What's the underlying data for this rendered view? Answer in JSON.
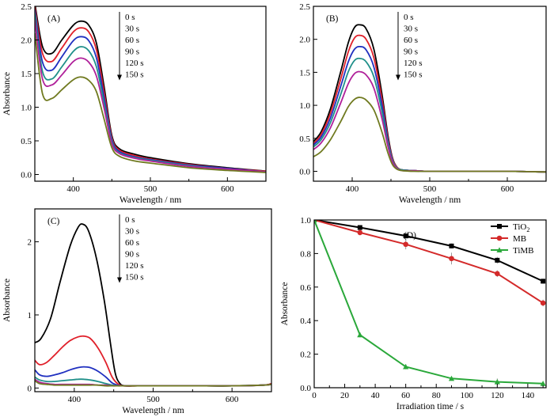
{
  "chart_data": [
    {
      "type": "line",
      "panel_label": "(A)",
      "xlabel": "Wavelength / nm",
      "ylabel": "Absorbance",
      "xlim": [
        350,
        650
      ],
      "ylim": [
        -0.1,
        2.5
      ],
      "xticks": [
        400,
        500,
        600
      ],
      "yticks": [
        0.0,
        0.5,
        1.0,
        1.5,
        2.0,
        2.5
      ],
      "ytick_labels": [
        "0.0",
        "0.5",
        "1.0",
        "1.5",
        "2.0",
        "2.5"
      ],
      "legend": [
        "0 s",
        "30 s",
        "60 s",
        "90 s",
        "120 s",
        "150 s"
      ],
      "legend_arrow": true,
      "colors": [
        "#000000",
        "#e0202a",
        "#2030c0",
        "#20908a",
        "#b0209a",
        "#707a20"
      ],
      "series": [
        {
          "name": "0 s",
          "x": [
            350,
            360,
            372,
            385,
            400,
            410,
            420,
            430,
            440,
            450,
            460,
            480,
            500,
            550,
            600,
            650
          ],
          "y": [
            2.55,
            1.9,
            1.8,
            2.0,
            2.22,
            2.28,
            2.22,
            1.95,
            1.3,
            0.58,
            0.38,
            0.3,
            0.25,
            0.16,
            0.1,
            0.05
          ]
        },
        {
          "name": "30 s",
          "x": [
            350,
            360,
            372,
            385,
            400,
            410,
            420,
            430,
            440,
            450,
            460,
            480,
            500,
            550,
            600,
            650
          ],
          "y": [
            2.5,
            1.8,
            1.68,
            1.88,
            2.12,
            2.18,
            2.12,
            1.85,
            1.22,
            0.55,
            0.36,
            0.28,
            0.23,
            0.15,
            0.09,
            0.05
          ]
        },
        {
          "name": "60 s",
          "x": [
            350,
            360,
            372,
            385,
            400,
            410,
            420,
            430,
            440,
            450,
            460,
            480,
            500,
            550,
            600,
            650
          ],
          "y": [
            2.45,
            1.67,
            1.55,
            1.75,
            1.99,
            2.05,
            1.99,
            1.73,
            1.14,
            0.52,
            0.34,
            0.26,
            0.22,
            0.14,
            0.09,
            0.04
          ]
        },
        {
          "name": "90 s",
          "x": [
            350,
            360,
            372,
            385,
            400,
            410,
            420,
            430,
            440,
            450,
            460,
            480,
            500,
            550,
            600,
            650
          ],
          "y": [
            2.4,
            1.53,
            1.42,
            1.6,
            1.83,
            1.9,
            1.84,
            1.6,
            1.06,
            0.49,
            0.32,
            0.25,
            0.21,
            0.13,
            0.08,
            0.04
          ]
        },
        {
          "name": "120 s",
          "x": [
            350,
            360,
            372,
            385,
            400,
            410,
            420,
            430,
            440,
            450,
            460,
            480,
            500,
            550,
            600,
            650
          ],
          "y": [
            2.3,
            1.42,
            1.33,
            1.48,
            1.68,
            1.73,
            1.67,
            1.46,
            0.98,
            0.46,
            0.31,
            0.24,
            0.2,
            0.12,
            0.08,
            0.04
          ]
        },
        {
          "name": "150 s",
          "x": [
            350,
            360,
            372,
            385,
            400,
            410,
            420,
            430,
            440,
            450,
            460,
            480,
            500,
            550,
            600,
            650
          ],
          "y": [
            2.1,
            1.2,
            1.13,
            1.26,
            1.41,
            1.45,
            1.4,
            1.23,
            0.82,
            0.4,
            0.27,
            0.2,
            0.17,
            0.1,
            0.06,
            0.03
          ]
        }
      ]
    },
    {
      "type": "line",
      "panel_label": "(B)",
      "xlabel": "Wavelength / nm",
      "ylabel": "",
      "xlim": [
        350,
        650
      ],
      "ylim": [
        -0.15,
        2.5
      ],
      "xticks": [
        400,
        500,
        600
      ],
      "yticks": [
        0.0,
        0.5,
        1.0,
        1.5,
        2.0,
        2.5
      ],
      "ytick_labels": [
        "0.0",
        "0.5",
        "1.0",
        "1.5",
        "2.0",
        "2.5"
      ],
      "legend": [
        "0 s",
        "30 s",
        "60 s",
        "90 s",
        "120 s",
        "150 s"
      ],
      "legend_arrow": true,
      "colors": [
        "#000000",
        "#e0202a",
        "#2030c0",
        "#20908a",
        "#b0209a",
        "#707a20"
      ],
      "series": [
        {
          "name": "0 s",
          "x": [
            350,
            360,
            372,
            385,
            395,
            403,
            410,
            418,
            428,
            438,
            446,
            452,
            458,
            465,
            480,
            500,
            550,
            600,
            650
          ],
          "y": [
            0.45,
            0.6,
            0.95,
            1.5,
            1.95,
            2.18,
            2.22,
            2.16,
            1.85,
            1.2,
            0.55,
            0.2,
            0.06,
            0.02,
            0.01,
            0.0,
            0.0,
            0.0,
            -0.01
          ]
        },
        {
          "name": "30 s",
          "x": [
            350,
            360,
            372,
            385,
            395,
            403,
            410,
            418,
            428,
            438,
            446,
            452,
            458,
            465,
            480,
            500,
            550,
            600,
            650
          ],
          "y": [
            0.42,
            0.56,
            0.88,
            1.39,
            1.81,
            2.02,
            2.06,
            2.0,
            1.72,
            1.12,
            0.51,
            0.19,
            0.06,
            0.02,
            0.01,
            0.0,
            0.0,
            0.0,
            -0.01
          ]
        },
        {
          "name": "60 s",
          "x": [
            350,
            360,
            372,
            385,
            395,
            403,
            410,
            418,
            428,
            438,
            446,
            452,
            458,
            465,
            480,
            500,
            550,
            600,
            650
          ],
          "y": [
            0.4,
            0.52,
            0.81,
            1.28,
            1.66,
            1.85,
            1.89,
            1.84,
            1.58,
            1.03,
            0.47,
            0.17,
            0.05,
            0.02,
            0.01,
            0.0,
            0.0,
            0.0,
            -0.01
          ]
        },
        {
          "name": "90 s",
          "x": [
            350,
            360,
            372,
            385,
            395,
            403,
            410,
            418,
            428,
            438,
            446,
            452,
            458,
            465,
            480,
            500,
            550,
            600,
            650
          ],
          "y": [
            0.37,
            0.48,
            0.74,
            1.16,
            1.51,
            1.68,
            1.71,
            1.66,
            1.43,
            0.93,
            0.43,
            0.16,
            0.05,
            0.02,
            0.01,
            0.0,
            0.0,
            0.0,
            -0.01
          ]
        },
        {
          "name": "120 s",
          "x": [
            350,
            360,
            372,
            385,
            395,
            403,
            410,
            418,
            428,
            438,
            446,
            452,
            458,
            465,
            480,
            500,
            550,
            600,
            650
          ],
          "y": [
            0.33,
            0.43,
            0.66,
            1.03,
            1.33,
            1.48,
            1.51,
            1.46,
            1.26,
            0.82,
            0.38,
            0.14,
            0.04,
            0.01,
            0.01,
            0.0,
            0.0,
            0.0,
            -0.01
          ]
        },
        {
          "name": "150 s",
          "x": [
            350,
            360,
            372,
            385,
            395,
            403,
            410,
            418,
            428,
            438,
            446,
            452,
            458,
            465,
            480,
            500,
            550,
            600,
            650
          ],
          "y": [
            0.22,
            0.3,
            0.48,
            0.75,
            0.98,
            1.09,
            1.12,
            1.08,
            0.93,
            0.61,
            0.28,
            0.1,
            0.03,
            0.01,
            0.0,
            0.0,
            0.0,
            0.0,
            -0.01
          ]
        }
      ]
    },
    {
      "type": "line",
      "panel_label": "(C)",
      "xlabel": "Wavelength / nm",
      "ylabel": "Absorbance",
      "xlim": [
        350,
        650
      ],
      "ylim": [
        -0.05,
        2.45
      ],
      "xticks": [
        400,
        500,
        600
      ],
      "yticks": [
        0,
        1,
        2
      ],
      "ytick_labels": [
        "0",
        "1",
        "2"
      ],
      "legend": [
        "0 s",
        "30 s",
        "60 s",
        "90 s",
        "120 s",
        "150 s"
      ],
      "legend_arrow": true,
      "colors": [
        "#000000",
        "#e0202a",
        "#2030c0",
        "#20908a",
        "#b0209a",
        "#707a20"
      ],
      "series": [
        {
          "name": "0 s",
          "x": [
            350,
            358,
            370,
            382,
            395,
            405,
            411,
            418,
            428,
            438,
            446,
            452,
            458,
            465,
            480,
            500,
            550,
            600,
            640,
            650
          ],
          "y": [
            0.62,
            0.68,
            0.95,
            1.45,
            1.95,
            2.2,
            2.24,
            2.15,
            1.78,
            1.2,
            0.6,
            0.2,
            0.06,
            0.03,
            0.03,
            0.03,
            0.03,
            0.03,
            0.04,
            0.06
          ]
        },
        {
          "name": "30 s",
          "x": [
            350,
            356,
            365,
            375,
            385,
            395,
            405,
            412,
            420,
            430,
            440,
            448,
            455,
            462,
            480,
            500,
            550,
            600,
            640,
            650
          ],
          "y": [
            0.38,
            0.32,
            0.35,
            0.45,
            0.56,
            0.65,
            0.7,
            0.71,
            0.68,
            0.55,
            0.35,
            0.15,
            0.06,
            0.03,
            0.03,
            0.03,
            0.03,
            0.03,
            0.04,
            0.06
          ]
        },
        {
          "name": "60 s",
          "x": [
            350,
            356,
            365,
            375,
            385,
            395,
            405,
            412,
            420,
            430,
            440,
            448,
            455,
            462,
            480,
            500,
            550,
            600,
            640,
            650
          ],
          "y": [
            0.25,
            0.18,
            0.16,
            0.18,
            0.21,
            0.25,
            0.28,
            0.29,
            0.28,
            0.23,
            0.15,
            0.07,
            0.04,
            0.03,
            0.03,
            0.03,
            0.03,
            0.03,
            0.04,
            0.05
          ]
        },
        {
          "name": "90 s",
          "x": [
            350,
            356,
            365,
            375,
            385,
            395,
            405,
            412,
            420,
            430,
            440,
            448,
            455,
            462,
            480,
            500,
            550,
            600,
            640,
            650
          ],
          "y": [
            0.15,
            0.11,
            0.09,
            0.09,
            0.1,
            0.11,
            0.12,
            0.12,
            0.11,
            0.09,
            0.06,
            0.04,
            0.03,
            0.03,
            0.03,
            0.03,
            0.03,
            0.03,
            0.04,
            0.05
          ]
        },
        {
          "name": "120 s",
          "x": [
            350,
            356,
            365,
            375,
            385,
            395,
            405,
            412,
            420,
            430,
            440,
            448,
            455,
            462,
            480,
            500,
            550,
            600,
            640,
            650
          ],
          "y": [
            0.12,
            0.08,
            0.06,
            0.05,
            0.05,
            0.05,
            0.05,
            0.05,
            0.05,
            0.04,
            0.04,
            0.03,
            0.03,
            0.03,
            0.03,
            0.03,
            0.03,
            0.03,
            0.04,
            0.05
          ]
        },
        {
          "name": "150 s",
          "x": [
            350,
            356,
            365,
            375,
            385,
            395,
            405,
            412,
            420,
            430,
            440,
            448,
            455,
            462,
            480,
            500,
            550,
            600,
            640,
            650
          ],
          "y": [
            0.1,
            0.06,
            0.05,
            0.04,
            0.04,
            0.04,
            0.04,
            0.04,
            0.04,
            0.04,
            0.03,
            0.03,
            0.03,
            0.03,
            0.03,
            0.03,
            0.03,
            0.03,
            0.04,
            0.05
          ]
        }
      ]
    },
    {
      "type": "line",
      "panel_label": "(D)",
      "xlabel": "Irradiation time / s",
      "ylabel": "Absorbance",
      "xlim": [
        0,
        152
      ],
      "ylim": [
        0,
        1.0
      ],
      "xticks": [
        0,
        20,
        40,
        60,
        80,
        100,
        120,
        140
      ],
      "yticks": [
        0.0,
        0.2,
        0.4,
        0.6,
        0.8,
        1.0
      ],
      "ytick_labels": [
        "0.0",
        "0.2",
        "0.4",
        "0.6",
        "0.8",
        "1.0"
      ],
      "legend_position": "top-right",
      "series": [
        {
          "name": "TiO",
          "name_sub": "2",
          "color": "#000000",
          "marker": "square",
          "x": [
            0,
            30,
            60,
            90,
            120,
            150
          ],
          "y": [
            1.0,
            0.955,
            0.905,
            0.845,
            0.76,
            0.635
          ],
          "err": [
            0,
            0.01,
            0.015,
            0.015,
            0.02,
            0.015
          ]
        },
        {
          "name": "MB",
          "color": "#d42a2a",
          "marker": "circle",
          "x": [
            0,
            30,
            60,
            90,
            120,
            150
          ],
          "y": [
            1.0,
            0.925,
            0.855,
            0.77,
            0.68,
            0.505
          ],
          "err": [
            0,
            0.015,
            0.03,
            0.035,
            0.02,
            0.02
          ]
        },
        {
          "name": "TiMB",
          "color": "#2aa83a",
          "marker": "triangle",
          "x": [
            0,
            30,
            60,
            90,
            120,
            150
          ],
          "y": [
            1.0,
            0.315,
            0.125,
            0.055,
            0.035,
            0.025
          ],
          "err": [
            0,
            0.015,
            0.015,
            0.01,
            0.02,
            0.01
          ]
        }
      ]
    }
  ]
}
